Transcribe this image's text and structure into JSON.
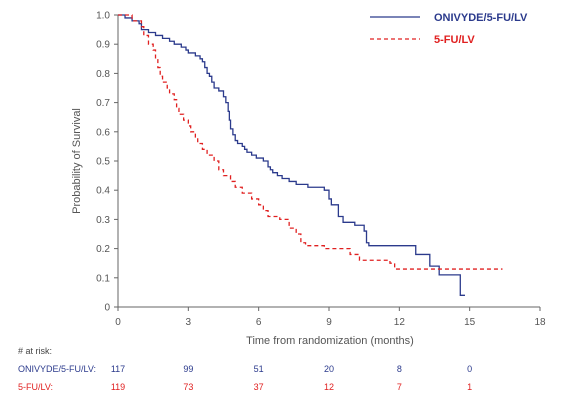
{
  "chart_data": {
    "type": "line",
    "step": true,
    "xlabel": "Time from randomization (months)",
    "ylabel": "Probability of Survival",
    "xlim": [
      0,
      18
    ],
    "ylim": [
      0,
      1.0
    ],
    "x_ticks": [
      0,
      3,
      6,
      9,
      12,
      15,
      18
    ],
    "y_ticks": [
      0,
      0.1,
      0.2,
      0.3,
      0.4,
      0.5,
      0.6,
      0.7,
      0.8,
      0.9,
      1.0
    ],
    "x_tick_labels": [
      "0",
      "3",
      "6",
      "9",
      "12",
      "15",
      "18"
    ],
    "y_tick_labels": [
      "0",
      "0.1",
      "0.2",
      "0.3",
      "0.4",
      "0.5",
      "0.6",
      "0.7",
      "0.8",
      "0.9",
      "1.0"
    ],
    "grid": false,
    "legend_position": "top-right",
    "series": [
      {
        "name": "ONIVYDE/5-FU/LV",
        "color": "#2b3a8c",
        "dash": "solid",
        "points": [
          [
            0,
            1.0
          ],
          [
            0.3,
            0.99
          ],
          [
            0.6,
            0.98
          ],
          [
            0.9,
            0.97
          ],
          [
            1.0,
            0.95
          ],
          [
            1.3,
            0.94
          ],
          [
            1.6,
            0.93
          ],
          [
            1.9,
            0.92
          ],
          [
            2.2,
            0.91
          ],
          [
            2.4,
            0.9
          ],
          [
            2.7,
            0.89
          ],
          [
            2.9,
            0.88
          ],
          [
            3.0,
            0.87
          ],
          [
            3.3,
            0.86
          ],
          [
            3.5,
            0.85
          ],
          [
            3.6,
            0.84
          ],
          [
            3.7,
            0.82
          ],
          [
            3.8,
            0.8
          ],
          [
            3.9,
            0.79
          ],
          [
            4.0,
            0.77
          ],
          [
            4.1,
            0.75
          ],
          [
            4.3,
            0.74
          ],
          [
            4.5,
            0.72
          ],
          [
            4.6,
            0.7
          ],
          [
            4.7,
            0.67
          ],
          [
            4.75,
            0.64
          ],
          [
            4.8,
            0.61
          ],
          [
            4.9,
            0.59
          ],
          [
            5.0,
            0.57
          ],
          [
            5.1,
            0.56
          ],
          [
            5.3,
            0.55
          ],
          [
            5.4,
            0.54
          ],
          [
            5.5,
            0.53
          ],
          [
            5.7,
            0.52
          ],
          [
            5.9,
            0.51
          ],
          [
            6.2,
            0.5
          ],
          [
            6.4,
            0.48
          ],
          [
            6.5,
            0.47
          ],
          [
            6.6,
            0.46
          ],
          [
            6.8,
            0.45
          ],
          [
            7.0,
            0.44
          ],
          [
            7.3,
            0.43
          ],
          [
            7.6,
            0.42
          ],
          [
            8.1,
            0.41
          ],
          [
            8.8,
            0.4
          ],
          [
            9.0,
            0.37
          ],
          [
            9.1,
            0.35
          ],
          [
            9.4,
            0.31
          ],
          [
            9.6,
            0.29
          ],
          [
            10.1,
            0.28
          ],
          [
            10.5,
            0.26
          ],
          [
            10.6,
            0.22
          ],
          [
            10.7,
            0.21
          ],
          [
            12.7,
            0.18
          ],
          [
            13.3,
            0.14
          ],
          [
            13.7,
            0.11
          ],
          [
            14.6,
            0.04
          ],
          [
            14.8,
            0.04
          ]
        ]
      },
      {
        "name": "5-FU/LV",
        "color": "#e02020",
        "dash": "dashed",
        "points": [
          [
            0,
            1.0
          ],
          [
            0.6,
            0.98
          ],
          [
            1.0,
            0.96
          ],
          [
            1.1,
            0.93
          ],
          [
            1.3,
            0.9
          ],
          [
            1.5,
            0.88
          ],
          [
            1.6,
            0.85
          ],
          [
            1.7,
            0.82
          ],
          [
            1.8,
            0.79
          ],
          [
            1.9,
            0.77
          ],
          [
            2.1,
            0.75
          ],
          [
            2.2,
            0.73
          ],
          [
            2.4,
            0.71
          ],
          [
            2.5,
            0.68
          ],
          [
            2.6,
            0.66
          ],
          [
            2.8,
            0.64
          ],
          [
            3.0,
            0.62
          ],
          [
            3.1,
            0.6
          ],
          [
            3.3,
            0.58
          ],
          [
            3.4,
            0.56
          ],
          [
            3.6,
            0.54
          ],
          [
            3.8,
            0.52
          ],
          [
            4.1,
            0.5
          ],
          [
            4.3,
            0.47
          ],
          [
            4.5,
            0.45
          ],
          [
            4.8,
            0.43
          ],
          [
            5.0,
            0.41
          ],
          [
            5.3,
            0.39
          ],
          [
            5.7,
            0.37
          ],
          [
            6.0,
            0.35
          ],
          [
            6.2,
            0.33
          ],
          [
            6.4,
            0.31
          ],
          [
            6.9,
            0.3
          ],
          [
            7.3,
            0.27
          ],
          [
            7.6,
            0.25
          ],
          [
            7.8,
            0.22
          ],
          [
            8.0,
            0.21
          ],
          [
            8.8,
            0.2
          ],
          [
            9.9,
            0.18
          ],
          [
            10.3,
            0.16
          ],
          [
            11.6,
            0.15
          ],
          [
            11.8,
            0.13
          ],
          [
            16.4,
            0.13
          ]
        ]
      }
    ],
    "at_risk": {
      "title": "# at risk:",
      "times": [
        0,
        3,
        6,
        9,
        12,
        15
      ],
      "rows": [
        {
          "label": "ONIVYDE/5-FU/LV:",
          "color": "#2b3a8c",
          "values": [
            "117",
            "99",
            "51",
            "20",
            "8",
            "0"
          ]
        },
        {
          "label": "5-FU/LV:",
          "color": "#e02020",
          "values": [
            "119",
            "73",
            "37",
            "12",
            "7",
            "1"
          ]
        }
      ]
    }
  }
}
